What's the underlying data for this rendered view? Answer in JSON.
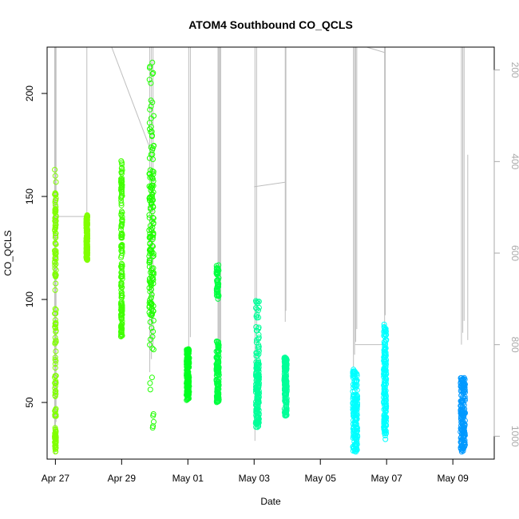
{
  "chart_data": {
    "type": "scatter",
    "title": "ATOM4 Southbound CO_QCLS",
    "xlabel": "Date",
    "ylabel": "CO_QCLS",
    "x_ticks": [
      {
        "label": "Apr 27",
        "day": 0
      },
      {
        "label": "Apr 29",
        "day": 2
      },
      {
        "label": "May 01",
        "day": 4
      },
      {
        "label": "May 03",
        "day": 6
      },
      {
        "label": "May 05",
        "day": 8
      },
      {
        "label": "May 07",
        "day": 10
      },
      {
        "label": "May 09",
        "day": 12
      }
    ],
    "y_ticks": [
      50,
      100,
      150,
      200
    ],
    "y2_ticks": [
      200,
      400,
      600,
      800,
      1000
    ],
    "xlim": [
      "Apr 26 18:00",
      "May 10 06:00"
    ],
    "ylim": [
      22.5,
      222.5
    ],
    "y2lim": [
      1050,
      150
    ],
    "grid": false,
    "legend": "none",
    "colors": {
      "pressure_line": "#bebebe",
      "axis": "#000000",
      "right_axis": "#aaaaaa"
    },
    "co_clusters": [
      {
        "day": 0.0,
        "spread": 0.04,
        "color": "#80ff00",
        "segments": [
          [
            26,
            37,
            0.3
          ],
          [
            37,
            110,
            0.3
          ],
          [
            110,
            152,
            0.4
          ]
        ],
        "outliers": [
          160,
          163,
          157
        ]
      },
      {
        "day": 0.95,
        "spread": 0.04,
        "color": "#80ff00",
        "segments": [
          [
            119,
            141,
            1.0
          ]
        ],
        "outliers": []
      },
      {
        "day": 2.0,
        "spread": 0.04,
        "color": "#40ff00",
        "segments": [
          [
            82,
            100,
            0.35
          ],
          [
            100,
            140,
            0.4
          ],
          [
            140,
            168,
            0.25
          ]
        ],
        "outliers": []
      },
      {
        "day": 2.9,
        "spread": 0.14,
        "color": "#20ff00",
        "segments": [
          [
            92,
            165,
            0.75
          ],
          [
            36,
            90,
            0.1
          ],
          [
            165,
            215,
            0.15
          ]
        ],
        "outliers": [
          215,
          210,
          205
        ]
      },
      {
        "day": 4.0,
        "spread": 0.08,
        "color": "#00ff20",
        "segments": [
          [
            51,
            76,
            1.0
          ]
        ],
        "outliers": []
      },
      {
        "day": 4.9,
        "spread": 0.08,
        "color": "#00ff40",
        "segments": [
          [
            50,
            80,
            0.75
          ],
          [
            100,
            117,
            0.25
          ]
        ],
        "outliers": []
      },
      {
        "day": 6.1,
        "spread": 0.1,
        "color": "#00ff99",
        "segments": [
          [
            38,
            70,
            0.8
          ],
          [
            70,
            100,
            0.2
          ]
        ],
        "outliers": []
      },
      {
        "day": 6.95,
        "spread": 0.08,
        "color": "#00ff99",
        "segments": [
          [
            43,
            72,
            1.0
          ]
        ],
        "outliers": []
      },
      {
        "day": 9.05,
        "spread": 0.14,
        "color": "#00ffff",
        "segments": [
          [
            26,
            66,
            1.0
          ]
        ],
        "outliers": []
      },
      {
        "day": 9.95,
        "spread": 0.08,
        "color": "#00ffff",
        "segments": [
          [
            32,
            88,
            1.0
          ]
        ],
        "outliers": []
      },
      {
        "day": 12.3,
        "spread": 0.14,
        "color": "#0099ff",
        "segments": [
          [
            26,
            62,
            1.0
          ]
        ],
        "outliers": []
      }
    ],
    "pressure_profiles": [
      {
        "day": 0.0,
        "count": 3,
        "width": 0.04,
        "top": 150,
        "bottom": 1040
      },
      {
        "day": 0.95,
        "count": 1,
        "width": 0.0,
        "top": 150,
        "bottom": 520
      },
      {
        "day": 2.9,
        "count": 3,
        "width": 0.1,
        "top": 150,
        "bottom": 860
      },
      {
        "day": 4.05,
        "count": 2,
        "width": 0.05,
        "top": 150,
        "bottom": 810
      },
      {
        "day": 4.95,
        "count": 4,
        "width": 0.08,
        "top": 150,
        "bottom": 880
      },
      {
        "day": 6.05,
        "count": 2,
        "width": 0.05,
        "top": 150,
        "bottom": 1010
      },
      {
        "day": 6.95,
        "count": 2,
        "width": 0.02,
        "top": 150,
        "bottom": 750
      },
      {
        "day": 9.05,
        "count": 4,
        "width": 0.1,
        "top": 150,
        "bottom": 850
      },
      {
        "day": 9.95,
        "count": 2,
        "width": 0.02,
        "top": 150,
        "bottom": 760
      },
      {
        "day": 12.3,
        "count": 3,
        "width": 0.08,
        "top": 150,
        "bottom": 800
      },
      {
        "day": 12.45,
        "count": 1,
        "width": 0.0,
        "top": 385,
        "bottom": 790
      }
    ],
    "pressure_connectors": [
      [
        [
          0.0,
          520
        ],
        [
          0.95,
          520
        ]
      ],
      [
        [
          1.7,
          150
        ],
        [
          2.85,
          370
        ]
      ],
      [
        [
          6.0,
          455
        ],
        [
          6.95,
          445
        ]
      ],
      [
        [
          9.05,
          800
        ],
        [
          9.95,
          800
        ]
      ],
      [
        [
          9.4,
          150
        ],
        [
          9.95,
          162
        ]
      ]
    ]
  }
}
